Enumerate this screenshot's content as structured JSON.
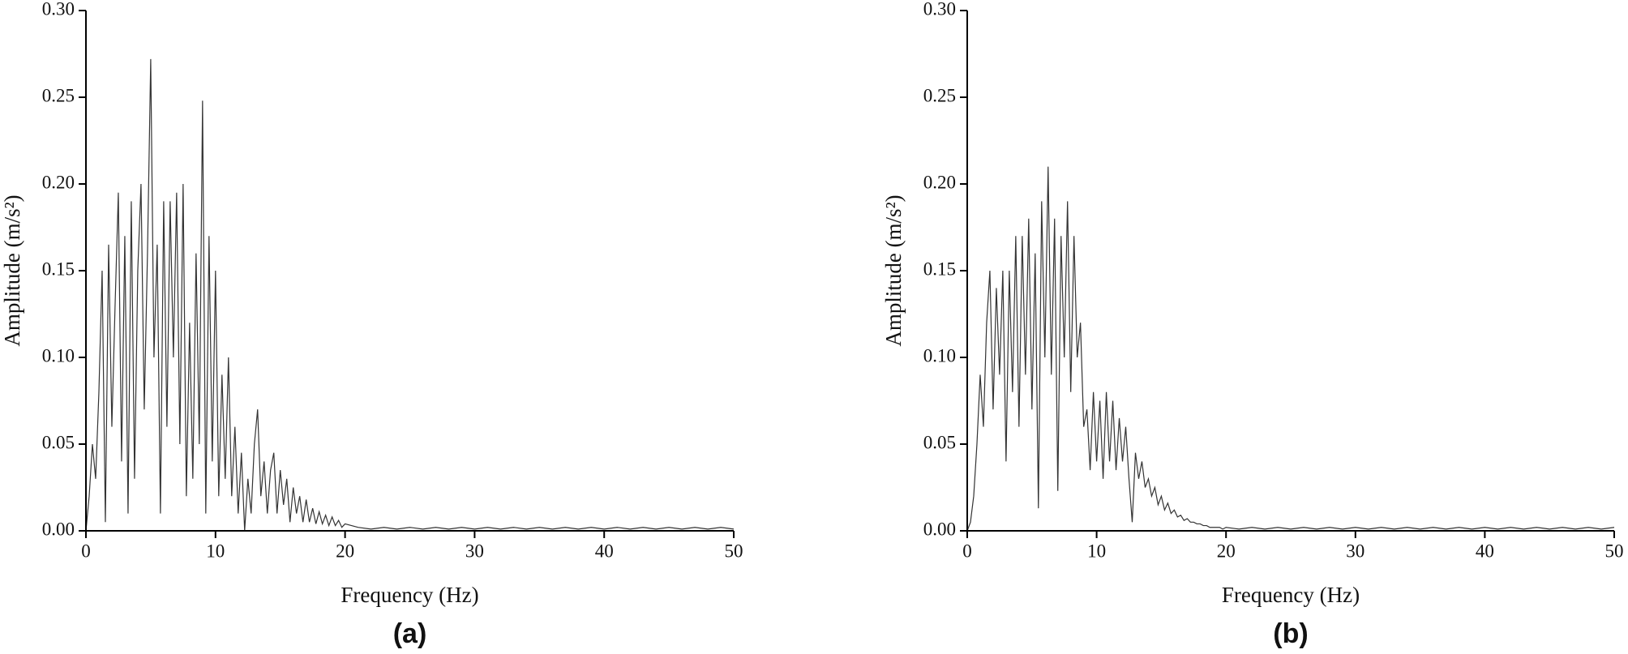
{
  "chart_data": [
    {
      "type": "line",
      "panel_label": "(a)",
      "xlabel": "Frequency (Hz)",
      "ylabel": "Amplitude (m/s²)",
      "xlim": [
        0,
        50
      ],
      "xticks": [
        0,
        10,
        20,
        30,
        40,
        50
      ],
      "ylim": [
        0,
        0.3
      ],
      "yticks": [
        {
          "value": 0,
          "label": "0.00"
        },
        0.05,
        {
          "value": 0.1,
          "label": "0.10"
        },
        0.15,
        {
          "value": 0.2,
          "label": "0.20"
        },
        0.25,
        {
          "value": 0.3,
          "label": "0.30"
        }
      ],
      "color": "#333333",
      "x": [
        0,
        0.25,
        0.5,
        0.75,
        1,
        1.25,
        1.5,
        1.75,
        2,
        2.25,
        2.5,
        2.75,
        3,
        3.25,
        3.5,
        3.75,
        4,
        4.25,
        4.5,
        4.75,
        5,
        5.25,
        5.5,
        5.75,
        6,
        6.25,
        6.5,
        6.75,
        7,
        7.25,
        7.5,
        7.75,
        8,
        8.25,
        8.5,
        8.75,
        9,
        9.25,
        9.5,
        9.75,
        10,
        10.25,
        10.5,
        10.75,
        11,
        11.25,
        11.5,
        11.75,
        12,
        12.25,
        12.5,
        12.75,
        13,
        13.25,
        13.5,
        13.75,
        14,
        14.25,
        14.5,
        14.75,
        15,
        15.25,
        15.5,
        15.75,
        16,
        16.25,
        16.5,
        16.75,
        17,
        17.25,
        17.5,
        17.75,
        18,
        18.25,
        18.5,
        18.75,
        19,
        19.25,
        19.5,
        19.75,
        20,
        21,
        22,
        23,
        24,
        25,
        26,
        27,
        28,
        29,
        30,
        31,
        32,
        33,
        34,
        35,
        36,
        37,
        38,
        39,
        40,
        41,
        42,
        43,
        44,
        45,
        46,
        47,
        48,
        49,
        50
      ],
      "values": [
        0,
        0.02,
        0.05,
        0.03,
        0.08,
        0.15,
        0.005,
        0.165,
        0.06,
        0.13,
        0.195,
        0.04,
        0.17,
        0.01,
        0.19,
        0.03,
        0.15,
        0.2,
        0.07,
        0.16,
        0.272,
        0.1,
        0.165,
        0.01,
        0.19,
        0.06,
        0.19,
        0.1,
        0.195,
        0.05,
        0.2,
        0.02,
        0.12,
        0.03,
        0.16,
        0.05,
        0.248,
        0.01,
        0.17,
        0.04,
        0.15,
        0.02,
        0.09,
        0.03,
        0.1,
        0.02,
        0.06,
        0.01,
        0.045,
        0,
        0.03,
        0.01,
        0.05,
        0.07,
        0.02,
        0.04,
        0.01,
        0.035,
        0.045,
        0.01,
        0.035,
        0.015,
        0.03,
        0.005,
        0.025,
        0.01,
        0.02,
        0.005,
        0.018,
        0.005,
        0.013,
        0.004,
        0.011,
        0.004,
        0.009,
        0.003,
        0.008,
        0.003,
        0.006,
        0.002,
        0.004,
        0.002,
        0.001,
        0.002,
        0.001,
        0.002,
        0.001,
        0.002,
        0.001,
        0.002,
        0.001,
        0.002,
        0.001,
        0.002,
        0.001,
        0.002,
        0.001,
        0.002,
        0.001,
        0.002,
        0.001,
        0.002,
        0.001,
        0.002,
        0.001,
        0.002,
        0.001,
        0.002,
        0.001,
        0.002,
        0.001
      ]
    },
    {
      "type": "line",
      "panel_label": "(b)",
      "xlabel": "Frequency (Hz)",
      "ylabel": "Amplitude (m/s²)",
      "xlim": [
        0,
        50
      ],
      "xticks": [
        0,
        10,
        20,
        30,
        40,
        50
      ],
      "ylim": [
        0,
        0.3
      ],
      "yticks": [
        {
          "value": 0,
          "label": "0.00"
        },
        0.05,
        {
          "value": 0.1,
          "label": "0.10"
        },
        0.15,
        {
          "value": 0.2,
          "label": "0.20"
        },
        0.25,
        {
          "value": 0.3,
          "label": "0.30"
        }
      ],
      "color": "#333333",
      "x": [
        0,
        0.25,
        0.5,
        0.75,
        1,
        1.25,
        1.5,
        1.75,
        2,
        2.25,
        2.5,
        2.75,
        3,
        3.25,
        3.5,
        3.75,
        4,
        4.25,
        4.5,
        4.75,
        5,
        5.25,
        5.5,
        5.75,
        6,
        6.25,
        6.5,
        6.75,
        7,
        7.25,
        7.5,
        7.75,
        8,
        8.25,
        8.5,
        8.75,
        9,
        9.25,
        9.5,
        9.75,
        10,
        10.25,
        10.5,
        10.75,
        11,
        11.25,
        11.5,
        11.75,
        12,
        12.25,
        12.5,
        12.75,
        13,
        13.25,
        13.5,
        13.75,
        14,
        14.25,
        14.5,
        14.75,
        15,
        15.25,
        15.5,
        15.75,
        16,
        16.25,
        16.5,
        16.75,
        17,
        17.25,
        17.5,
        17.75,
        18,
        18.25,
        18.5,
        18.75,
        19,
        19.25,
        19.5,
        19.75,
        20,
        21,
        22,
        23,
        24,
        25,
        26,
        27,
        28,
        29,
        30,
        31,
        32,
        33,
        34,
        35,
        36,
        37,
        38,
        39,
        40,
        41,
        42,
        43,
        44,
        45,
        46,
        47,
        48,
        49,
        50
      ],
      "values": [
        0,
        0.005,
        0.02,
        0.05,
        0.09,
        0.06,
        0.12,
        0.15,
        0.07,
        0.14,
        0.09,
        0.15,
        0.04,
        0.15,
        0.08,
        0.17,
        0.06,
        0.17,
        0.09,
        0.18,
        0.07,
        0.16,
        0.013,
        0.19,
        0.1,
        0.21,
        0.09,
        0.18,
        0.023,
        0.17,
        0.1,
        0.19,
        0.08,
        0.17,
        0.1,
        0.12,
        0.06,
        0.07,
        0.035,
        0.08,
        0.04,
        0.075,
        0.03,
        0.08,
        0.04,
        0.075,
        0.035,
        0.065,
        0.04,
        0.06,
        0.03,
        0.005,
        0.045,
        0.03,
        0.04,
        0.025,
        0.03,
        0.02,
        0.025,
        0.015,
        0.02,
        0.012,
        0.016,
        0.01,
        0.012,
        0.008,
        0.009,
        0.006,
        0.007,
        0.005,
        0.005,
        0.004,
        0.004,
        0.003,
        0.003,
        0.002,
        0.002,
        0.002,
        0.002,
        0.001,
        0.002,
        0.001,
        0.002,
        0.001,
        0.002,
        0.001,
        0.002,
        0.001,
        0.002,
        0.001,
        0.002,
        0.001,
        0.002,
        0.001,
        0.002,
        0.001,
        0.002,
        0.001,
        0.002,
        0.001,
        0.002,
        0.001,
        0.002,
        0.001,
        0.002,
        0.001,
        0.002,
        0.001,
        0.002,
        0.001,
        0.002
      ]
    }
  ]
}
